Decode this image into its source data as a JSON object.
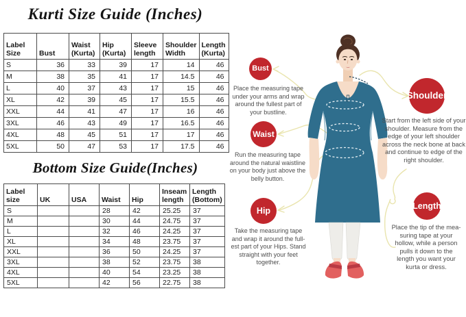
{
  "kurti_table": {
    "title": "Kurti Size Guide (Inches)",
    "headers": [
      "Label\nSize",
      "Bust",
      "Waist\n(Kurta)",
      "Hip\n(Kurta)",
      "Sleeve\nlength",
      "Shoulder\nWidth",
      "Length\n(Kurta)"
    ],
    "rows": [
      [
        "S",
        "36",
        "33",
        "39",
        "17",
        "14",
        "46"
      ],
      [
        "M",
        "38",
        "35",
        "41",
        "17",
        "14.5",
        "46"
      ],
      [
        "L",
        "40",
        "37",
        "43",
        "17",
        "15",
        "46"
      ],
      [
        "XL",
        "42",
        "39",
        "45",
        "17",
        "15.5",
        "46"
      ],
      [
        "XXL",
        "44",
        "41",
        "47",
        "17",
        "16",
        "46"
      ],
      [
        "3XL",
        "46",
        "43",
        "49",
        "17",
        "16.5",
        "46"
      ],
      [
        "4XL",
        "48",
        "45",
        "51",
        "17",
        "17",
        "46"
      ],
      [
        "5XL",
        "50",
        "47",
        "53",
        "17",
        "17.5",
        "46"
      ]
    ]
  },
  "bottom_table": {
    "title": "Bottom Size Guide(Inches)",
    "headers": [
      "Label size",
      "UK",
      "USA",
      "Waist",
      "Hip",
      "Inseam\nlength",
      "Length\n(Bottom)"
    ],
    "rows": [
      [
        "S",
        "",
        "",
        "28",
        "42",
        "25.25",
        "37"
      ],
      [
        "M",
        "",
        "",
        "30",
        "44",
        "24.75",
        "37"
      ],
      [
        "L",
        "",
        "",
        "32",
        "46",
        "24.25",
        "37"
      ],
      [
        "XL",
        "",
        "",
        "34",
        "48",
        "23.75",
        "37"
      ],
      [
        "XXL",
        "",
        "",
        "36",
        "50",
        "24.25",
        "37"
      ],
      [
        "3XL",
        "",
        "",
        "38",
        "52",
        "23.75",
        "38"
      ],
      [
        "4XL",
        "",
        "",
        "40",
        "54",
        "23.25",
        "38"
      ],
      [
        "5XL",
        "",
        "",
        "42",
        "56",
        "22.75",
        "38"
      ]
    ]
  },
  "callouts": {
    "bust": {
      "label": "Bust",
      "text": "Place the measuring tape\nunder your arms and wrap\naround the fullest part of\nyour bustline."
    },
    "waist": {
      "label": "Waist",
      "text": "Run the measuring tape\naround the natural waistline\non your body just above the\nbelly button."
    },
    "hip": {
      "label": "Hip",
      "text": "Take the measuring tape\nand wrap it around the full-\nest part of your Hips. Stand\nstraight with your feet\ntogether."
    },
    "shoulder": {
      "label": "Shoulder",
      "text": "Start from the left side of your\nshoulder. Measure from the\nedge of your left shoulder\nacross the neck bone at back\nand continue to edge of the\nright shoulder."
    },
    "length": {
      "label": "Length",
      "text": "Place the tip of the mea-\nsuring tape at your\nhollow, while a person\npulls it down to the\nlength you want your\nkurta or dress."
    }
  },
  "colors": {
    "badge_red": "#c1272d",
    "kurti_teal": "#2f6e8d",
    "callout_line_yellow": "#e9e4ad",
    "description_text_gray": "#4d4d4d",
    "shoe_red": "#e2605f"
  }
}
